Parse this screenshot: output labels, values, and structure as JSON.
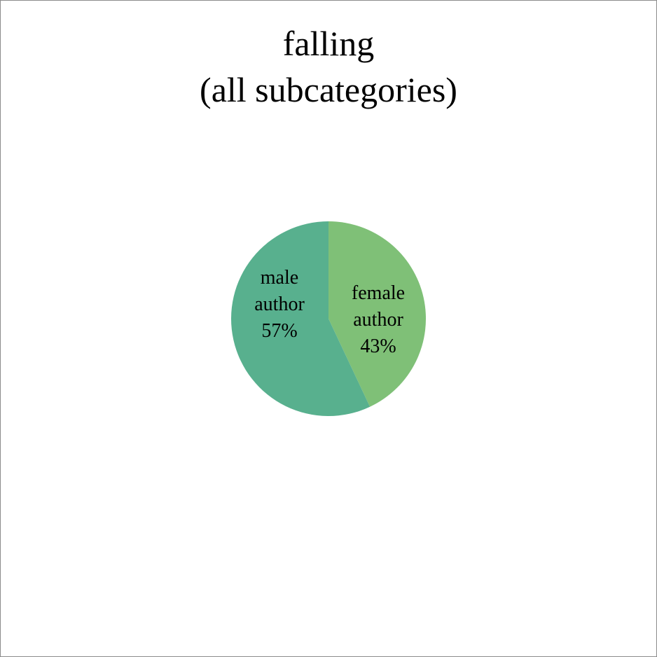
{
  "chart_data": {
    "type": "pie",
    "title_lines": [
      "falling",
      "(all subcategories)"
    ],
    "slices": [
      {
        "label_lines": [
          "female",
          "author",
          "43%"
        ],
        "value": 43,
        "color": "#7fc077"
      },
      {
        "label_lines": [
          "male",
          "author",
          "57%"
        ],
        "value": 57,
        "color": "#58b08e"
      }
    ],
    "legend": "none"
  }
}
